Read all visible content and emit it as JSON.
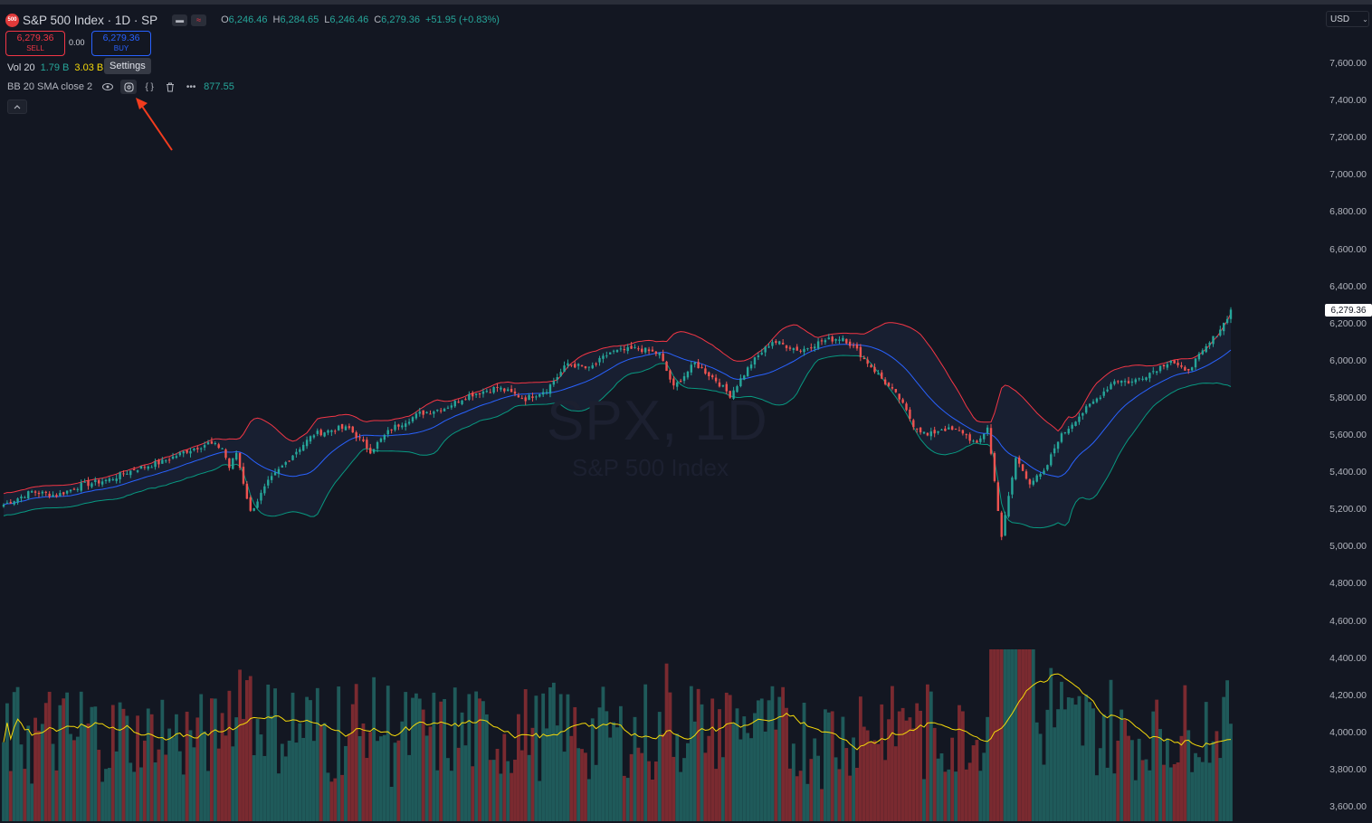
{
  "header": {
    "logo_text": "500",
    "symbol_title": "S&P 500 Index · 1D · SP",
    "ohlc": [
      {
        "label": "O",
        "value": "6,246.46"
      },
      {
        "label": "H",
        "value": "6,284.65"
      },
      {
        "label": "L",
        "value": "6,246.46"
      },
      {
        "label": "C",
        "value": "6,279.36"
      }
    ],
    "change": "+51.95 (+0.83%)"
  },
  "trade": {
    "sell_price": "6,279.36",
    "sell_label": "SELL",
    "spread": "0.00",
    "buy_price": "6,279.36",
    "buy_label": "BUY"
  },
  "volume_legend": {
    "name": "Vol 20",
    "volume": "1.79 B",
    "ma": "3.03 B"
  },
  "tooltip": "Settings",
  "bb_legend": {
    "name": "BB 20 SMA close 2",
    "value": "877.55"
  },
  "watermark": {
    "title": "SPX, 1D",
    "subtitle": "S&P 500 Index"
  },
  "price_axis": {
    "currency": "USD",
    "labels": [
      "7,600.00",
      "7,400.00",
      "7,200.00",
      "7,000.00",
      "6,800.00",
      "6,600.00",
      "6,400.00",
      "6,200.00",
      "6,000.00",
      "5,800.00",
      "5,600.00",
      "5,400.00",
      "5,200.00",
      "5,000.00",
      "4,800.00",
      "4,600.00",
      "4,400.00",
      "4,200.00",
      "4,000.00",
      "3,800.00",
      "3,600.00"
    ],
    "last_price": "6,279.36"
  },
  "colors": {
    "background": "#131722",
    "up": "#26a69a",
    "down": "#ef5350",
    "bb_upper": "#f23645",
    "bb_basis": "#2962ff",
    "bb_lower": "#089981",
    "vol_ma": "#f5d90a",
    "annotation_arrow": "#f23c1e"
  },
  "chart_data": {
    "type": "candlestick",
    "title": "S&P 500 Index · 1D · SP",
    "ylim": [
      3560,
      7720
    ],
    "overlays": [
      "Bollinger Bands (20, 2)",
      "Volume",
      "Volume MA 20"
    ],
    "price_keyframes": [
      [
        0,
        5230
      ],
      [
        8,
        5300
      ],
      [
        15,
        5280
      ],
      [
        22,
        5335
      ],
      [
        30,
        5365
      ],
      [
        37,
        5420
      ],
      [
        45,
        5460
      ],
      [
        52,
        5520
      ],
      [
        58,
        5560
      ],
      [
        62,
        5535
      ],
      [
        64,
        5430
      ],
      [
        66,
        5510
      ],
      [
        70,
        5190
      ],
      [
        75,
        5350
      ],
      [
        82,
        5500
      ],
      [
        88,
        5610
      ],
      [
        95,
        5640
      ],
      [
        98,
        5640
      ],
      [
        104,
        5520
      ],
      [
        110,
        5640
      ],
      [
        118,
        5720
      ],
      [
        125,
        5750
      ],
      [
        132,
        5820
      ],
      [
        140,
        5860
      ],
      [
        148,
        5800
      ],
      [
        154,
        5850
      ],
      [
        160,
        5990
      ],
      [
        166,
        5960
      ],
      [
        172,
        6050
      ],
      [
        180,
        6070
      ],
      [
        186,
        6040
      ],
      [
        190,
        5860
      ],
      [
        196,
        5990
      ],
      [
        202,
        5900
      ],
      [
        206,
        5820
      ],
      [
        212,
        5990
      ],
      [
        218,
        6110
      ],
      [
        226,
        6060
      ],
      [
        232,
        6110
      ],
      [
        238,
        6130
      ],
      [
        242,
        6060
      ],
      [
        248,
        5930
      ],
      [
        254,
        5800
      ],
      [
        258,
        5660
      ],
      [
        262,
        5600
      ],
      [
        266,
        5640
      ],
      [
        272,
        5620
      ],
      [
        276,
        5550
      ],
      [
        279,
        5650
      ],
      [
        283,
        5060
      ],
      [
        287,
        5480
      ],
      [
        291,
        5350
      ],
      [
        295,
        5400
      ],
      [
        299,
        5580
      ],
      [
        304,
        5690
      ],
      [
        310,
        5800
      ],
      [
        315,
        5900
      ],
      [
        320,
        5890
      ],
      [
        326,
        5950
      ],
      [
        331,
        6010
      ],
      [
        335,
        5940
      ],
      [
        340,
        6050
      ],
      [
        344,
        6150
      ],
      [
        346,
        6205
      ],
      [
        348,
        6279
      ]
    ]
  }
}
